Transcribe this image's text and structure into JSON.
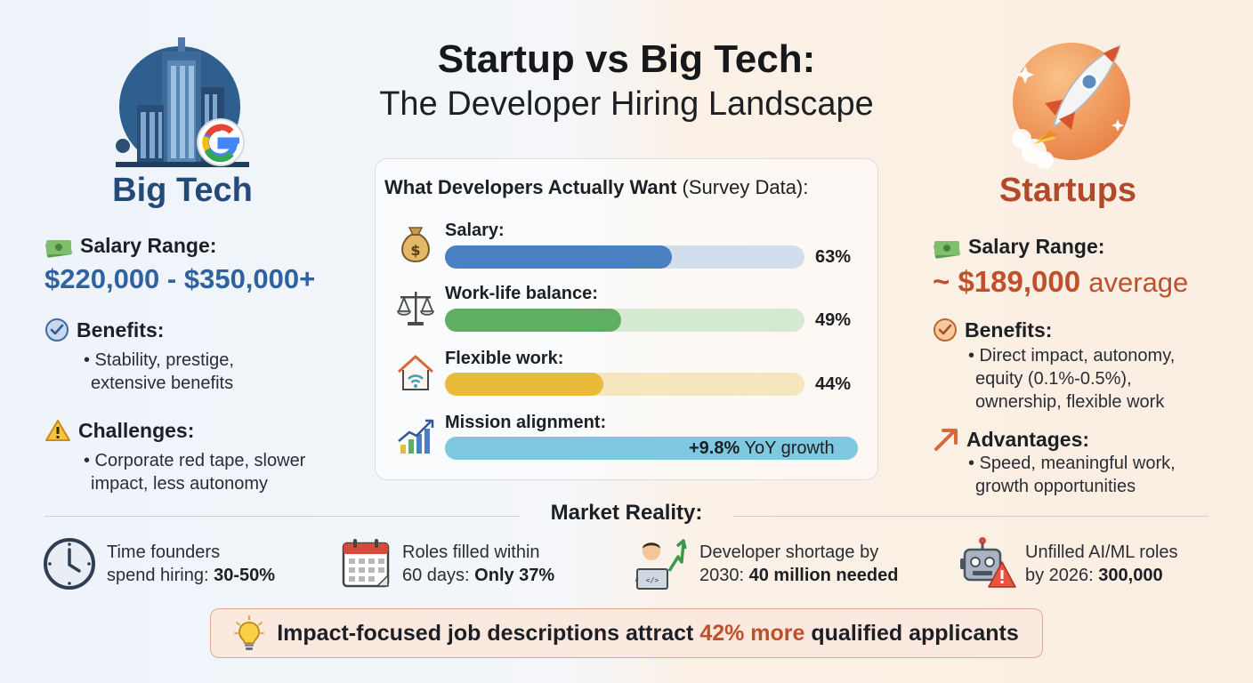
{
  "title": {
    "main": "Startup vs Big Tech:",
    "sub": "The Developer Hiring Landscape"
  },
  "big_tech": {
    "heading": "Big Tech",
    "logo_icon": "building-google-icon",
    "salary_label": "Salary Range:",
    "salary_value": "$220,000 - $350,000+",
    "benefits_label": "Benefits:",
    "benefits_lines": [
      "• Stability, prestige,",
      "extensive benefits"
    ],
    "challenges_label": "Challenges:",
    "challenges_lines": [
      "• Corporate red tape, slower",
      "impact, less autonomy"
    ],
    "accent": "#234a78"
  },
  "startups": {
    "heading": "Startups",
    "logo_icon": "rocket-icon",
    "salary_label": "Salary Range:",
    "salary_prefix": "~ $189,000",
    "salary_suffix": "average",
    "benefits_label": "Benefits:",
    "benefits_lines": [
      "• Direct impact, autonomy,",
      "equity (0.1%-0.5%),",
      "ownership, flexible work"
    ],
    "advantages_label": "Advantages:",
    "advantages_lines": [
      "• Speed, meaningful work,",
      "growth opportunities"
    ],
    "accent": "#b2492a"
  },
  "survey": {
    "title_bold": "What Developers Actually Want",
    "title_rest": " (Survey Data):",
    "items": [
      {
        "label": "Salary:",
        "percent": 63,
        "value_label": "63%",
        "icon": "money-bag-icon",
        "color": "#4a7fc1",
        "track": "#d3deed"
      },
      {
        "label": "Work-life balance:",
        "percent": 49,
        "value_label": "49%",
        "icon": "scales-icon",
        "color": "#5fae62",
        "track": "#d5e8d2"
      },
      {
        "label": "Flexible work:",
        "percent": 44,
        "value_label": "44%",
        "icon": "home-wifi-icon",
        "color": "#e8bb3a",
        "track": "#f5e6bd"
      },
      {
        "label": "Mission alignment:",
        "growth_bold": "+9.8%",
        "growth_rest": " YoY growth",
        "icon": "growth-chart-icon",
        "color": "#7ec8e0",
        "track": "#bde2ec"
      }
    ]
  },
  "market_reality": {
    "title": "Market Reality:",
    "stats": [
      {
        "icon": "clock-icon",
        "line1": "Time founders",
        "line2_pre": "spend hiring: ",
        "line2_bold": "30-50%"
      },
      {
        "icon": "calendar-icon",
        "line1": "Roles filled within",
        "line2_pre": "60 days: ",
        "line2_bold": "Only 37%"
      },
      {
        "icon": "developer-icon",
        "line1": "Developer shortage by",
        "line2_pre": "2030: ",
        "line2_bold": "40 million needed"
      },
      {
        "icon": "robot-warning-icon",
        "line1": "Unfilled AI/ML roles",
        "line2_pre": "by 2026: ",
        "line2_bold": "300,000"
      }
    ]
  },
  "callout": {
    "icon": "lightbulb-icon",
    "text_pre": "Impact-focused job descriptions attract ",
    "text_highlight": "42% more",
    "text_post": " qualified applicants"
  }
}
